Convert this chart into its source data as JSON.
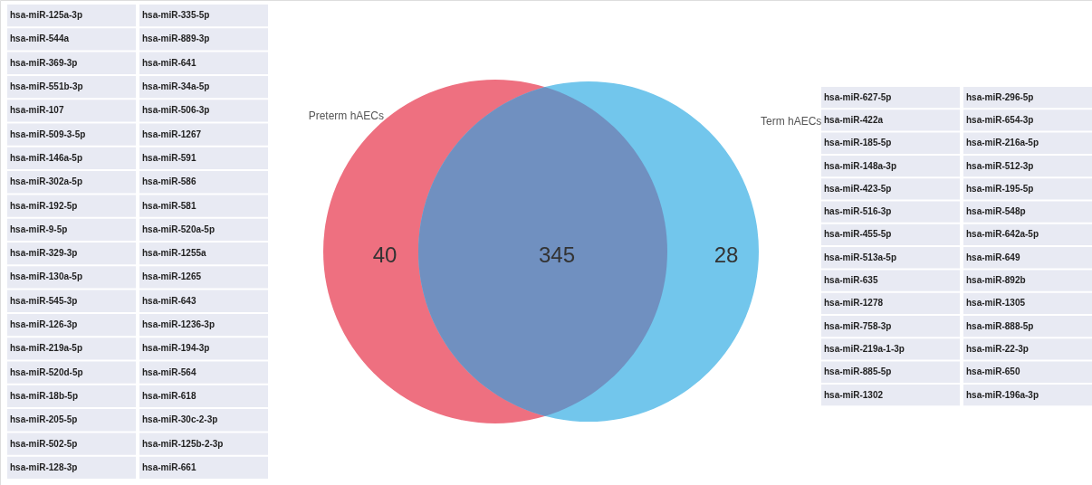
{
  "chart_data": {
    "type": "other",
    "categories": [
      "Preterm hAECs",
      null,
      "Term hAECs"
    ],
    "values": [
      40,
      345,
      28
    ],
    "colors": [
      "#ee7080",
      "#7090c0",
      "#72c6ec"
    ],
    "data_labels": true,
    "annotations": [
      "hsa-miR-125a-3p",
      "hsa-miR-335-5p",
      "hsa-miR-544a",
      "hsa-miR-889-3p",
      "hsa-miR-369-3p",
      "hsa-miR-641",
      "hsa-miR-551b-3p",
      "hsa-miR-34a-5p",
      "hsa-miR-107",
      "hsa-miR-506-3p",
      "hsa-miR-509-3-5p",
      "hsa-miR-1267",
      "hsa-miR-146a-5p",
      "hsa-miR-591",
      "hsa-miR-302a-5p",
      "hsa-miR-586",
      "hsa-miR-192-5p",
      "hsa-miR-581",
      "hsa-miR-9-5p",
      "hsa-miR-520a-5p",
      "hsa-miR-329-3p",
      "hsa-miR-1255a",
      "hsa-miR-130a-5p",
      "hsa-miR-1265",
      "hsa-miR-545-3p",
      "hsa-miR-643",
      "hsa-miR-126-3p",
      "hsa-miR-1236-3p",
      "hsa-miR-219a-5p",
      "hsa-miR-194-3p",
      "hsa-miR-520d-5p",
      "hsa-miR-564",
      "hsa-miR-18b-5p",
      "hsa-miR-618",
      "hsa-miR-205-5p",
      "hsa-miR-30c-2-3p",
      "hsa-miR-502-5p",
      "hsa-miR-125b-2-3p",
      "hsa-miR-128-3p",
      "hsa-miR-661",
      "hsa-miR-627-5p",
      "hsa-miR-296-5p",
      "hsa-miR-422a",
      "hsa-miR-654-3p",
      "hsa-miR-185-5p",
      "hsa-miR-216a-5p",
      "hsa-miR-148a-3p",
      "hsa-miR-512-3p",
      "hsa-miR-423-5p",
      "hsa-miR-195-5p",
      "has-miR-516-3p",
      "hsa-miR-548p",
      "hsa-miR-455-5p",
      "hsa-miR-642a-5p",
      "hsa-miR-513a-5p",
      "hsa-miR-649",
      "hsa-miR-635",
      "hsa-miR-892b",
      "hsa-miR-1278",
      "hsa-miR-1305",
      "hsa-miR-758-3p",
      "hsa-miR-888-5p",
      "hsa-miR-219a-1-3p",
      "hsa-miR-22-3p",
      "hsa-miR-885-5p",
      "hsa-miR-650",
      "hsa-miR-1302",
      "hsa-miR-196a-3p"
    ]
  }
}
